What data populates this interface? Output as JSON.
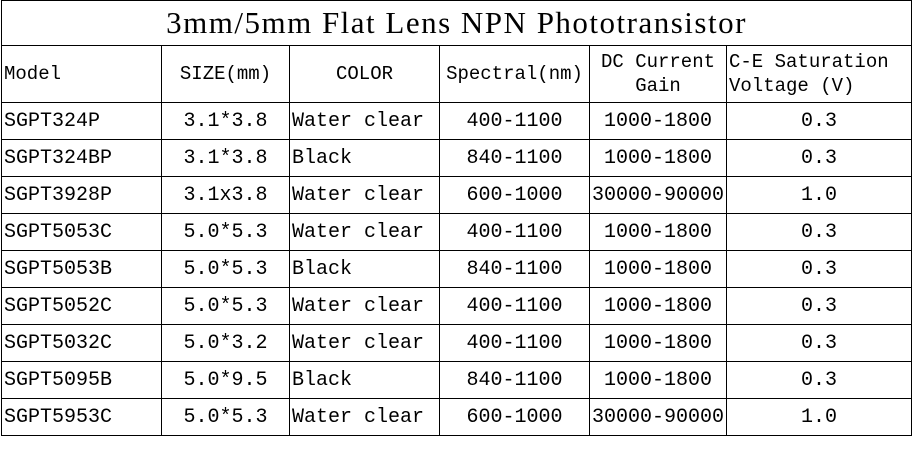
{
  "header": {
    "title": "3mm/5mm Flat Lens NPN Phototransistor"
  },
  "table": {
    "columns": [
      "Model",
      "SIZE(mm)",
      "COLOR",
      "Spectral(nm)",
      "DC Current Gain",
      "C-E Saturation Voltage (V)"
    ],
    "rows": [
      [
        "SGPT324P",
        "3.1*3.8",
        "Water clear",
        "400-1100",
        "1000-1800",
        "0.3"
      ],
      [
        "SGPT324BP",
        "3.1*3.8",
        "Black",
        "840-1100",
        "1000-1800",
        "0.3"
      ],
      [
        "SGPT3928P",
        "3.1x3.8",
        "Water clear",
        "600-1000",
        "30000-90000",
        "1.0"
      ],
      [
        "SGPT5053C",
        "5.0*5.3",
        "Water clear",
        "400-1100",
        "1000-1800",
        "0.3"
      ],
      [
        "SGPT5053B",
        "5.0*5.3",
        "Black",
        "840-1100",
        "1000-1800",
        "0.3"
      ],
      [
        "SGPT5052C",
        "5.0*5.3",
        "Water clear",
        "400-1100",
        "1000-1800",
        "0.3"
      ],
      [
        "SGPT5032C",
        "5.0*3.2",
        "Water clear",
        "400-1100",
        "1000-1800",
        "0.3"
      ],
      [
        "SGPT5095B",
        "5.0*9.5",
        "Black",
        "840-1100",
        "1000-1800",
        "0.3"
      ],
      [
        "SGPT5953C",
        "5.0*5.3",
        "Water clear",
        "600-1000",
        "30000-90000",
        "1.0"
      ]
    ]
  }
}
